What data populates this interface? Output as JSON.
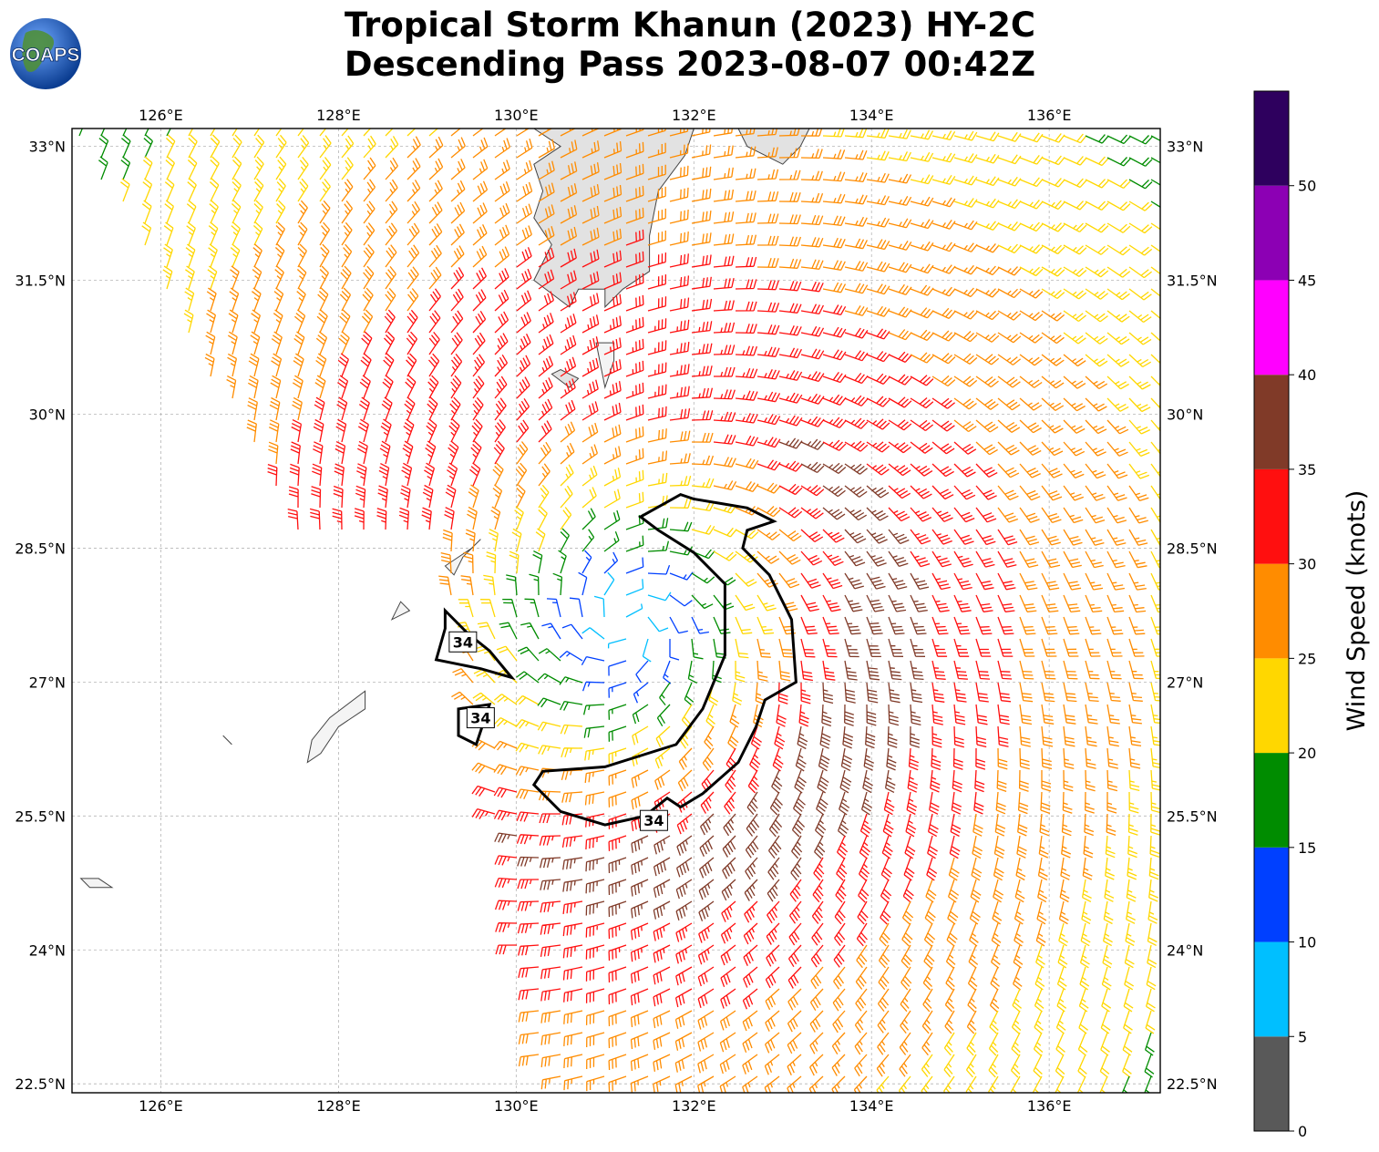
{
  "title": {
    "line1": "Tropical Storm Khanun (2023) HY-2C",
    "line2": "Descending Pass 2023-08-07 00:42Z"
  },
  "logo": {
    "text": "COAPS",
    "icon": "globe-icon"
  },
  "map": {
    "lon_range": [
      125.0,
      137.25
    ],
    "lat_range": [
      22.4,
      33.2
    ],
    "lon_ticks": [
      126,
      128,
      130,
      132,
      134,
      136
    ],
    "lat_ticks": [
      22.5,
      24,
      25.5,
      27,
      28.5,
      30,
      31.5,
      33
    ],
    "lon_tick_labels": [
      "126°E",
      "128°E",
      "130°E",
      "132°E",
      "134°E",
      "136°E"
    ],
    "lat_tick_labels": [
      "22.5°N",
      "24°N",
      "25.5°N",
      "27°N",
      "28.5°N",
      "30°N",
      "31.5°N",
      "33°N"
    ],
    "gridlines": true,
    "storm_center": {
      "lon": 131.25,
      "lat": 27.65
    },
    "contour_value_label": "34",
    "contour_label_positions": [
      {
        "lon": 129.4,
        "lat": 27.45
      },
      {
        "lon": 129.6,
        "lat": 26.6
      },
      {
        "lon": 131.55,
        "lat": 25.45
      }
    ]
  },
  "colorbar": {
    "label": "Wind Speed (knots)",
    "tick_labels": [
      "0",
      "5",
      "10",
      "15",
      "20",
      "25",
      "30",
      "35",
      "40",
      "45",
      "50"
    ],
    "bins": [
      {
        "min": 0,
        "max": 5,
        "color": "#595959"
      },
      {
        "min": 5,
        "max": 10,
        "color": "#00bfff"
      },
      {
        "min": 10,
        "max": 15,
        "color": "#0040ff"
      },
      {
        "min": 15,
        "max": 20,
        "color": "#008c00"
      },
      {
        "min": 20,
        "max": 25,
        "color": "#ffd700"
      },
      {
        "min": 25,
        "max": 30,
        "color": "#ff8c00"
      },
      {
        "min": 30,
        "max": 35,
        "color": "#ff0f0f"
      },
      {
        "min": 35,
        "max": 40,
        "color": "#803a28"
      },
      {
        "min": 40,
        "max": 45,
        "color": "#ff00ff"
      },
      {
        "min": 45,
        "max": 50,
        "color": "#8c00b4"
      },
      {
        "min": 50,
        "max": 55,
        "color": "#2e005e"
      }
    ]
  }
}
